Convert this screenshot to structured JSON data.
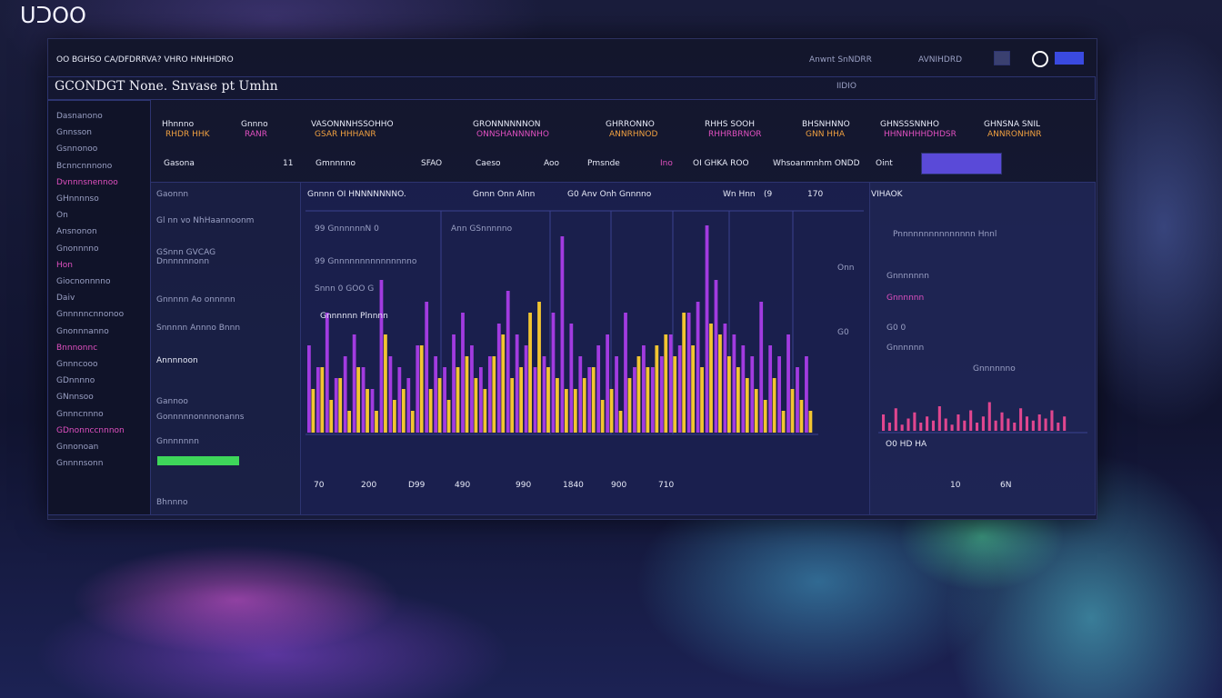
{
  "header": {
    "logo": "ᑌᑐOO",
    "status": "OO BGHSO CA/DFDRRVA? VHRO HNHHDRO",
    "actions": [
      "Anwnt SnNDRR",
      "AVNIHDRD"
    ]
  },
  "title": "GCONDGT None. Snvase pt Umhn",
  "title_note": "IIDIO",
  "sidebar": [
    "Dasnanono",
    "Gnnsson",
    "Gsnnonoo",
    "Bcnncnnnono",
    "Dvnnnsnennoo",
    "GHnnnnso",
    "On",
    "Ansnonon",
    "Gnonnnno",
    "Hon",
    "Giocnonnnno",
    "Daiv",
    "Gnnnnncnnonoo",
    "Gnonnnanno",
    "Bnnnonnc",
    "Gnnncooo",
    "GDnnnno",
    "GNnnsoo",
    "Gnnncnnno",
    "GDnonnccnnnon",
    "Gnnonoan",
    "Gnnnnsonn"
  ],
  "metrics": [
    {
      "label": "Hhnnno",
      "sub": "RHDR HHK"
    },
    {
      "label": "Gnnno",
      "sub": "RANR"
    },
    {
      "label": "VASONNNHSSOHHO",
      "sub": "GSAR HHHANR"
    },
    {
      "label": "GRONNNNNNON",
      "sub": "ONNSHANNNNHO"
    },
    {
      "label": "GHRRONNO",
      "sub": "ANNRHNOD"
    },
    {
      "label": "RHHS SOOH",
      "sub": "RHHRBRNOR"
    },
    {
      "label": "BHSNHNNO",
      "sub": "GNN HHA"
    },
    {
      "label": "GHNSSSNNHO",
      "sub": "HHNNHHHDHDSR"
    },
    {
      "label": "GHNSNA SNIL",
      "sub": "ANNRONHNR"
    }
  ],
  "tabs": [
    "Gasona",
    "11",
    "Gmnnnno",
    "SFAO",
    "Caeso",
    "Aoo",
    "Pmsnde",
    "Ino",
    "OI GHKA ROO",
    "Whsoanmnhm ONDD",
    "Oint"
  ],
  "nav": [
    "Gaonnn",
    "Gl nn vo NhHaannoonm",
    "GSnnn GVCAG",
    "Dnnnnnnonn",
    "Gnnnnn Ao onnnnn",
    "Snnnnn Annno Bnnn",
    "Annnnoon",
    "Gannoo",
    "Gonnnnnonnnonanns",
    "Gnnnnnnn",
    "Bhnnno"
  ],
  "chart_header": [
    "Gnnnn OI HNNNNNNNO.",
    "Gnnn Onn Alnn",
    "G0 Anv Onh Gnnnno",
    "Wn Hnn",
    "(9",
    "170"
  ],
  "annotations": [
    "99 GnnnnnnN 0",
    "Ann GSnnnnno",
    "99 Gnnnnnnnnnnnnnnno",
    "Snnn 0 GOO G",
    "Gnnnnnn Plnnnn"
  ],
  "side_labels": [
    "Onn",
    "G0"
  ],
  "x_labels": [
    "70",
    "200",
    "D99",
    "490",
    "990",
    "1840",
    "900",
    "710"
  ],
  "right_panel": {
    "title": "VIHAOK",
    "subtitle": "Pnnnnnnnnnnnnnnn Hnnl",
    "rows": [
      "Gnnnnnnn",
      "Gnnnnnn",
      "G0 0",
      "Gnnnnnn",
      "Gnnnnnno"
    ],
    "footer": "O0 HD HA",
    "x_labels": [
      "10",
      "6N"
    ]
  },
  "chart_data": [
    {
      "type": "bar",
      "series": [
        {
          "color": "#a23be0",
          "values": [
            40,
            30,
            55,
            25,
            35,
            45,
            30,
            20,
            70,
            35,
            30,
            25,
            40,
            60,
            35,
            30,
            45,
            55,
            40,
            30,
            35,
            50,
            65,
            45,
            40,
            30,
            35,
            55,
            90,
            50,
            35,
            30,
            40,
            45,
            35,
            55,
            30,
            40,
            30,
            35,
            45,
            40,
            55,
            60,
            95,
            70,
            50,
            45,
            40,
            35,
            60,
            40,
            35,
            45,
            30,
            35
          ]
        },
        {
          "color": "#f2c531",
          "values": [
            20,
            30,
            15,
            25,
            10,
            30,
            20,
            10,
            45,
            15,
            20,
            10,
            40,
            20,
            25,
            15,
            30,
            35,
            25,
            20,
            35,
            45,
            25,
            30,
            55,
            60,
            30,
            25,
            20,
            20,
            25,
            30,
            15,
            20,
            10,
            25,
            35,
            30,
            40,
            45,
            35,
            55,
            40,
            30,
            50,
            45,
            35,
            30,
            25,
            20,
            15,
            25,
            10,
            20,
            15,
            10
          ]
        }
      ]
    },
    {
      "type": "bar",
      "series": [
        {
          "color": "#e0468f",
          "values": [
            40,
            20,
            55,
            15,
            30,
            45,
            20,
            35,
            25,
            60,
            30,
            15,
            40,
            25,
            50,
            20,
            35,
            70,
            25,
            45,
            30,
            20,
            55,
            35,
            25,
            40,
            30,
            50,
            20,
            35
          ]
        }
      ]
    }
  ]
}
